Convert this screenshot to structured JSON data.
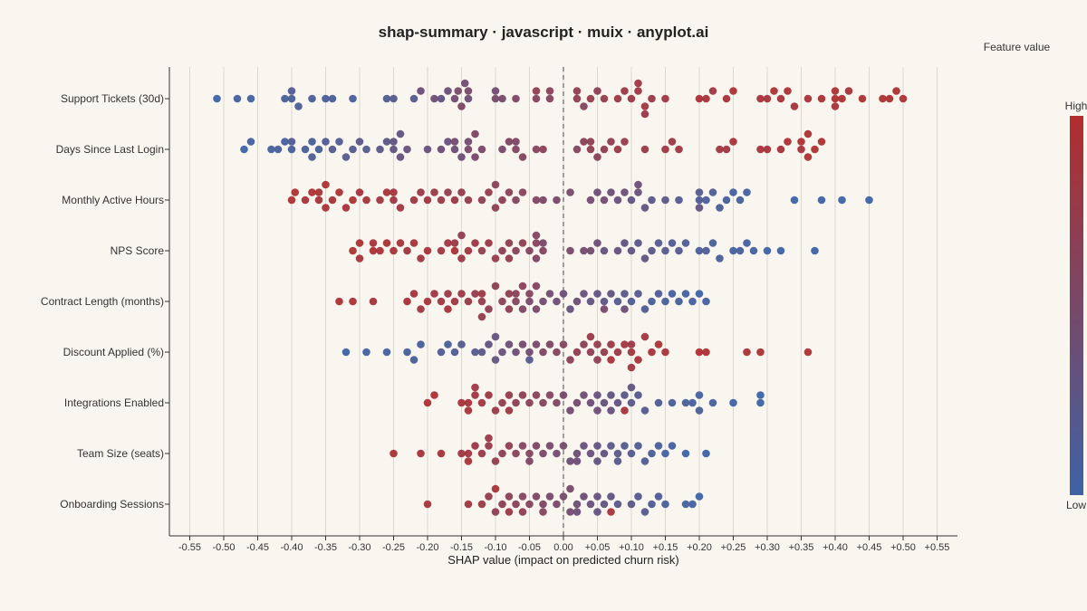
{
  "chart_data": {
    "type": "scatter",
    "title": "shap-summary · javascript · muix · anyplot.ai",
    "xlabel": "SHAP value (impact on predicted churn risk)",
    "xlim": [
      -0.58,
      0.58
    ],
    "x_ticks": [
      "-0.55",
      "-0.50",
      "-0.45",
      "-0.40",
      "-0.35",
      "-0.30",
      "-0.25",
      "-0.20",
      "-0.15",
      "-0.10",
      "-0.05",
      "0.00",
      "+0.05",
      "+0.10",
      "+0.15",
      "+0.20",
      "+0.25",
      "+0.30",
      "+0.35",
      "+0.40",
      "+0.45",
      "+0.50",
      "+0.55"
    ],
    "x_tick_values": [
      -0.55,
      -0.5,
      -0.45,
      -0.4,
      -0.35,
      -0.3,
      -0.25,
      -0.2,
      -0.15,
      -0.1,
      -0.05,
      0,
      0.05,
      0.1,
      0.15,
      0.2,
      0.25,
      0.3,
      0.35,
      0.4,
      0.45,
      0.5,
      0.55
    ],
    "zero_line": true,
    "grid": "vertical",
    "legend": {
      "title": "Feature value",
      "high_label": "High",
      "low_label": "Low",
      "high_color": "#b22d2d",
      "low_color": "#3d63a5",
      "placement": "right"
    },
    "features": [
      {
        "name": "Support Tickets (30d)",
        "x": [
          -0.51,
          -0.48,
          -0.46,
          -0.41,
          -0.4,
          -0.4,
          -0.39,
          -0.37,
          -0.35,
          -0.34,
          -0.31,
          -0.26,
          -0.25,
          -0.22,
          -0.21,
          -0.19,
          -0.18,
          -0.17,
          -0.16,
          -0.155,
          -0.15,
          -0.145,
          -0.14,
          -0.14,
          -0.1,
          -0.1,
          -0.09,
          -0.07,
          -0.04,
          -0.04,
          -0.02,
          -0.02,
          0.02,
          0.02,
          0.03,
          0.04,
          0.05,
          0.06,
          0.08,
          0.09,
          0.1,
          0.11,
          0.12,
          0.13,
          0.15,
          0.2,
          0.21,
          0.22,
          0.24,
          0.25,
          0.29,
          0.3,
          0.31,
          0.32,
          0.33,
          0.34,
          0.36,
          0.38,
          0.4,
          0.41,
          0.42,
          0.44,
          0.47,
          0.48,
          0.49,
          0.5,
          0.4,
          0.4,
          0.11,
          0.12
        ],
        "h": [
          0,
          0.05,
          0.05,
          0.1,
          0.1,
          0.15,
          0.12,
          0.1,
          0.1,
          0.12,
          0.1,
          0.15,
          0.2,
          0.2,
          0.4,
          0.4,
          0.3,
          0.4,
          0.45,
          0.5,
          0.55,
          0.45,
          0.4,
          0.5,
          0.5,
          0.45,
          0.5,
          0.55,
          0.6,
          0.7,
          0.6,
          0.65,
          0.7,
          0.7,
          0.6,
          0.75,
          0.7,
          0.75,
          0.8,
          0.8,
          0.8,
          0.85,
          0.85,
          0.8,
          0.85,
          0.9,
          0.9,
          0.85,
          0.9,
          0.95,
          0.9,
          0.9,
          0.95,
          0.9,
          0.95,
          0.9,
          0.9,
          0.95,
          0.95,
          0.95,
          0.9,
          0.95,
          0.95,
          0.95,
          0.95,
          0.95,
          0.95,
          0.9,
          0.85,
          0.8
        ]
      },
      {
        "name": "Days Since Last Login",
        "x": [
          -0.47,
          -0.46,
          -0.43,
          -0.42,
          -0.41,
          -0.4,
          -0.4,
          -0.38,
          -0.37,
          -0.37,
          -0.36,
          -0.35,
          -0.34,
          -0.33,
          -0.32,
          -0.31,
          -0.3,
          -0.29,
          -0.27,
          -0.26,
          -0.25,
          -0.25,
          -0.24,
          -0.24,
          -0.23,
          -0.2,
          -0.18,
          -0.17,
          -0.16,
          -0.16,
          -0.15,
          -0.14,
          -0.14,
          -0.13,
          -0.13,
          -0.12,
          -0.09,
          -0.08,
          -0.07,
          -0.07,
          -0.06,
          -0.04,
          -0.03,
          0.02,
          0.03,
          0.04,
          0.04,
          0.05,
          0.06,
          0.07,
          0.08,
          0.09,
          0.12,
          0.15,
          0.16,
          0.17,
          0.23,
          0.24,
          0.25,
          0.29,
          0.3,
          0.32,
          0.33,
          0.35,
          0.35,
          0.36,
          0.36,
          0.37,
          0.38
        ],
        "h": [
          0,
          0.05,
          0.05,
          0.1,
          0.05,
          0.1,
          0.15,
          0.1,
          0.1,
          0.15,
          0.1,
          0.15,
          0.2,
          0.15,
          0.2,
          0.2,
          0.25,
          0.2,
          0.25,
          0.25,
          0.3,
          0.3,
          0.35,
          0.3,
          0.35,
          0.35,
          0.4,
          0.35,
          0.4,
          0.45,
          0.4,
          0.5,
          0.45,
          0.5,
          0.55,
          0.5,
          0.5,
          0.55,
          0.6,
          0.55,
          0.6,
          0.6,
          0.65,
          0.6,
          0.65,
          0.7,
          0.7,
          0.65,
          0.7,
          0.7,
          0.8,
          0.75,
          0.8,
          0.85,
          0.8,
          0.85,
          0.85,
          0.85,
          0.9,
          0.9,
          0.9,
          0.9,
          0.95,
          0.9,
          0.95,
          0.95,
          0.95,
          0.95,
          0.95
        ]
      },
      {
        "name": "Monthly Active Hours",
        "x": [
          -0.4,
          -0.395,
          -0.38,
          -0.37,
          -0.36,
          -0.36,
          -0.35,
          -0.35,
          -0.34,
          -0.33,
          -0.32,
          -0.31,
          -0.3,
          -0.29,
          -0.27,
          -0.26,
          -0.25,
          -0.25,
          -0.24,
          -0.22,
          -0.21,
          -0.2,
          -0.19,
          -0.18,
          -0.17,
          -0.16,
          -0.15,
          -0.14,
          -0.12,
          -0.11,
          -0.1,
          -0.1,
          -0.09,
          -0.08,
          -0.07,
          -0.06,
          -0.04,
          -0.03,
          -0.01,
          0.01,
          0.04,
          0.05,
          0.06,
          0.07,
          0.08,
          0.09,
          0.1,
          0.11,
          0.12,
          0.13,
          0.15,
          0.17,
          0.2,
          0.2,
          0.21,
          0.22,
          0.23,
          0.24,
          0.25,
          0.26,
          0.27,
          0.34,
          0.38,
          0.41,
          0.45,
          0.11,
          0.2
        ],
        "h": [
          0.95,
          0.95,
          0.9,
          0.95,
          0.9,
          0.95,
          0.9,
          0.95,
          0.9,
          0.95,
          0.9,
          0.95,
          0.9,
          0.9,
          0.85,
          0.9,
          0.85,
          0.9,
          0.85,
          0.85,
          0.8,
          0.85,
          0.8,
          0.8,
          0.75,
          0.8,
          0.75,
          0.75,
          0.7,
          0.75,
          0.7,
          0.65,
          0.7,
          0.65,
          0.6,
          0.65,
          0.55,
          0.55,
          0.5,
          0.5,
          0.45,
          0.4,
          0.45,
          0.4,
          0.35,
          0.4,
          0.3,
          0.35,
          0.3,
          0.25,
          0.25,
          0.2,
          0.15,
          0.2,
          0.1,
          0.15,
          0.1,
          0.1,
          0.05,
          0.1,
          0.05,
          0,
          0,
          0,
          0,
          0.4,
          0.3
        ]
      },
      {
        "name": "NPS Score",
        "x": [
          -0.31,
          -0.3,
          -0.3,
          -0.28,
          -0.28,
          -0.27,
          -0.26,
          -0.25,
          -0.24,
          -0.23,
          -0.22,
          -0.21,
          -0.2,
          -0.18,
          -0.17,
          -0.16,
          -0.16,
          -0.15,
          -0.14,
          -0.13,
          -0.12,
          -0.11,
          -0.1,
          -0.09,
          -0.08,
          -0.08,
          -0.07,
          -0.06,
          -0.05,
          -0.04,
          -0.04,
          -0.03,
          -0.03,
          0.01,
          0.03,
          0.04,
          0.05,
          0.06,
          0.08,
          0.09,
          0.1,
          0.11,
          0.12,
          0.13,
          0.14,
          0.15,
          0.16,
          0.17,
          0.18,
          0.2,
          0.21,
          0.22,
          0.23,
          0.25,
          0.26,
          0.27,
          0.28,
          0.3,
          0.32,
          0.37,
          -0.15,
          -0.04
        ],
        "h": [
          0.95,
          0.95,
          0.9,
          0.95,
          0.9,
          0.9,
          0.95,
          0.9,
          0.9,
          0.85,
          0.9,
          0.85,
          0.9,
          0.85,
          0.85,
          0.9,
          0.8,
          0.8,
          0.85,
          0.8,
          0.75,
          0.8,
          0.75,
          0.7,
          0.7,
          0.75,
          0.65,
          0.7,
          0.6,
          0.65,
          0.55,
          0.6,
          0.5,
          0.5,
          0.45,
          0.45,
          0.4,
          0.35,
          0.35,
          0.3,
          0.3,
          0.25,
          0.3,
          0.25,
          0.2,
          0.2,
          0.15,
          0.2,
          0.15,
          0.1,
          0.15,
          0.1,
          0.1,
          0.05,
          0.1,
          0.05,
          0.05,
          0,
          0,
          0,
          0.7,
          0.6
        ]
      },
      {
        "name": "Contract Length (months)",
        "x": [
          -0.33,
          -0.31,
          -0.28,
          -0.23,
          -0.22,
          -0.21,
          -0.2,
          -0.19,
          -0.18,
          -0.17,
          -0.16,
          -0.15,
          -0.14,
          -0.13,
          -0.12,
          -0.12,
          -0.11,
          -0.1,
          -0.09,
          -0.08,
          -0.07,
          -0.07,
          -0.06,
          -0.05,
          -0.05,
          -0.04,
          -0.03,
          -0.02,
          -0.01,
          0,
          0.01,
          0.02,
          0.03,
          0.04,
          0.05,
          0.06,
          0.07,
          0.08,
          0.09,
          0.1,
          0.11,
          0.12,
          0.13,
          0.14,
          0.15,
          0.16,
          0.17,
          0.18,
          0.19,
          0.2,
          0.21,
          -0.17,
          -0.12,
          -0.08,
          -0.06,
          -0.04,
          0.06,
          0.09
        ],
        "h": [
          0.95,
          0.95,
          0.9,
          0.9,
          0.9,
          0.85,
          0.9,
          0.85,
          0.85,
          0.8,
          0.85,
          0.8,
          0.8,
          0.75,
          0.75,
          0.8,
          0.7,
          0.7,
          0.65,
          0.7,
          0.6,
          0.65,
          0.55,
          0.5,
          0.6,
          0.5,
          0.45,
          0.45,
          0.4,
          0.4,
          0.35,
          0.4,
          0.35,
          0.3,
          0.3,
          0.25,
          0.3,
          0.2,
          0.25,
          0.15,
          0.2,
          0.15,
          0.1,
          0.15,
          0.1,
          0.05,
          0.1,
          0.05,
          0.05,
          0,
          0.05,
          0.9,
          0.75,
          0.7,
          0.65,
          0.6,
          0.5,
          0.4
        ]
      },
      {
        "name": "Discount Applied (%)",
        "x": [
          -0.32,
          -0.29,
          -0.26,
          -0.23,
          -0.21,
          -0.18,
          -0.17,
          -0.16,
          -0.15,
          -0.13,
          -0.12,
          -0.11,
          -0.1,
          -0.1,
          -0.09,
          -0.08,
          -0.07,
          -0.06,
          -0.05,
          -0.04,
          -0.03,
          -0.02,
          -0.01,
          0,
          0.01,
          0.02,
          0.03,
          0.04,
          0.05,
          0.05,
          0.06,
          0.07,
          0.08,
          0.09,
          0.1,
          0.1,
          0.11,
          0.12,
          0.13,
          0.14,
          0.15,
          0.2,
          0.21,
          0.27,
          0.29,
          0.36,
          -0.22,
          -0.05,
          0.04,
          0.07,
          0.1
        ],
        "h": [
          0,
          0.05,
          0.05,
          0.1,
          0.1,
          0.15,
          0.1,
          0.15,
          0.2,
          0.2,
          0.25,
          0.3,
          0.3,
          0.35,
          0.35,
          0.4,
          0.4,
          0.45,
          0.45,
          0.5,
          0.55,
          0.55,
          0.6,
          0.6,
          0.65,
          0.7,
          0.65,
          0.7,
          0.75,
          0.7,
          0.75,
          0.8,
          0.8,
          0.85,
          0.85,
          0.8,
          0.9,
          0.85,
          0.9,
          0.95,
          0.9,
          0.95,
          0.95,
          0.95,
          0.95,
          0.95,
          0.1,
          0.2,
          0.8,
          0.9,
          0.85
        ]
      },
      {
        "name": "Integrations Enabled",
        "x": [
          -0.2,
          -0.19,
          -0.15,
          -0.14,
          -0.13,
          -0.12,
          -0.11,
          -0.1,
          -0.09,
          -0.08,
          -0.07,
          -0.06,
          -0.05,
          -0.04,
          -0.03,
          -0.02,
          -0.01,
          0,
          0.01,
          0.02,
          0.03,
          0.04,
          0.05,
          0.06,
          0.07,
          0.08,
          0.09,
          0.1,
          0.11,
          0.12,
          0.14,
          0.16,
          0.18,
          0.19,
          0.2,
          0.22,
          0.25,
          0.29,
          0.29,
          0.2,
          -0.14,
          -0.13,
          -0.08,
          0.05,
          0.07,
          0.09,
          0.1
        ],
        "h": [
          0.95,
          0.95,
          0.9,
          0.9,
          0.85,
          0.85,
          0.8,
          0.8,
          0.75,
          0.75,
          0.7,
          0.7,
          0.65,
          0.65,
          0.6,
          0.6,
          0.55,
          0.5,
          0.45,
          0.45,
          0.4,
          0.4,
          0.35,
          0.35,
          0.3,
          0.3,
          0.25,
          0.25,
          0.2,
          0.2,
          0.15,
          0.1,
          0.1,
          0.05,
          0.05,
          0.05,
          0,
          0,
          0,
          0.1,
          0.9,
          0.85,
          0.8,
          0.4,
          0.35,
          0.9,
          0.3
        ]
      },
      {
        "name": "Team Size (seats)",
        "x": [
          -0.25,
          -0.21,
          -0.18,
          -0.15,
          -0.14,
          -0.13,
          -0.12,
          -0.11,
          -0.1,
          -0.09,
          -0.08,
          -0.07,
          -0.06,
          -0.05,
          -0.04,
          -0.03,
          -0.02,
          -0.01,
          0,
          0.01,
          0.02,
          0.03,
          0.04,
          0.05,
          0.06,
          0.07,
          0.08,
          0.09,
          0.1,
          0.11,
          0.12,
          0.13,
          0.14,
          0.15,
          0.16,
          0.18,
          0.21,
          -0.14,
          -0.11,
          -0.05,
          0.02,
          0.05,
          0.08
        ],
        "h": [
          0.95,
          0.9,
          0.9,
          0.85,
          0.85,
          0.8,
          0.8,
          0.75,
          0.75,
          0.7,
          0.7,
          0.65,
          0.6,
          0.6,
          0.55,
          0.5,
          0.5,
          0.45,
          0.45,
          0.4,
          0.4,
          0.35,
          0.35,
          0.3,
          0.3,
          0.25,
          0.25,
          0.2,
          0.2,
          0.15,
          0.15,
          0.1,
          0.1,
          0.05,
          0.05,
          0,
          0,
          0.9,
          0.8,
          0.55,
          0.4,
          0.3,
          0.2
        ]
      },
      {
        "name": "Onboarding Sessions",
        "x": [
          -0.2,
          -0.14,
          -0.12,
          -0.11,
          -0.1,
          -0.09,
          -0.08,
          -0.07,
          -0.06,
          -0.05,
          -0.04,
          -0.03,
          -0.02,
          -0.01,
          0,
          0.01,
          0.02,
          0.03,
          0.04,
          0.05,
          0.06,
          0.07,
          0.08,
          0.1,
          0.11,
          0.12,
          0.13,
          0.14,
          0.15,
          0.18,
          0.19,
          0.2,
          -0.1,
          -0.08,
          -0.06,
          -0.03,
          0.01,
          0.02,
          0.05,
          0.07
        ],
        "h": [
          0.9,
          0.85,
          0.8,
          0.75,
          0.7,
          0.7,
          0.65,
          0.65,
          0.6,
          0.6,
          0.55,
          0.55,
          0.5,
          0.5,
          0.45,
          0.45,
          0.4,
          0.4,
          0.35,
          0.35,
          0.3,
          0.3,
          0.25,
          0.25,
          0.2,
          0.2,
          0.15,
          0.15,
          0.1,
          0.05,
          0.05,
          0,
          0.9,
          0.8,
          0.7,
          0.6,
          0.5,
          0.4,
          0.3,
          0.9
        ]
      }
    ]
  }
}
